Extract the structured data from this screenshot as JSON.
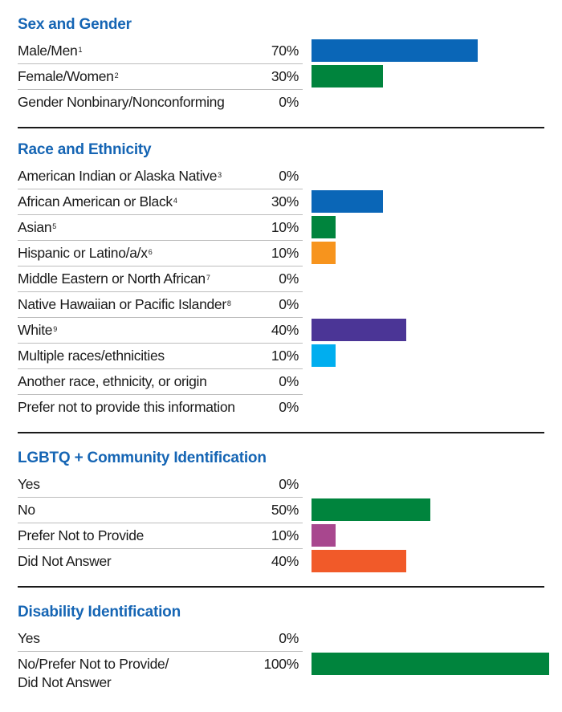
{
  "chart_data": {
    "type": "bar",
    "orientation": "horizontal",
    "value_unit": "%",
    "xlim": [
      0,
      100
    ],
    "grid": false,
    "sections": [
      {
        "title": "Sex and Gender",
        "rows": [
          {
            "label": "Male/Men",
            "sup": "1",
            "value": 70,
            "value_label": "70%",
            "color": "#0a66b7"
          },
          {
            "label": "Female/Women",
            "sup": "2",
            "value": 30,
            "value_label": "30%",
            "color": "#00843d"
          },
          {
            "label": "Gender Nonbinary/Nonconforming",
            "sup": "",
            "value": 0,
            "value_label": "0%",
            "color": ""
          }
        ]
      },
      {
        "title": "Race and Ethnicity",
        "rows": [
          {
            "label": "American Indian or Alaska Native",
            "sup": "3",
            "value": 0,
            "value_label": "0%",
            "color": ""
          },
          {
            "label": "African American or Black",
            "sup": "4",
            "value": 30,
            "value_label": "30%",
            "color": "#0a66b7"
          },
          {
            "label": "Asian",
            "sup": "5",
            "value": 10,
            "value_label": "10%",
            "color": "#00843d"
          },
          {
            "label": "Hispanic or Latino/a/x",
            "sup": "6",
            "value": 10,
            "value_label": "10%",
            "color": "#f7941d"
          },
          {
            "label": "Middle Eastern or North African",
            "sup": "7",
            "value": 0,
            "value_label": "0%",
            "color": ""
          },
          {
            "label": "Native Hawaiian or Pacific Islander",
            "sup": "8",
            "value": 0,
            "value_label": "0%",
            "color": ""
          },
          {
            "label": "White",
            "sup": "9",
            "value": 40,
            "value_label": "40%",
            "color": "#4b3596"
          },
          {
            "label": "Multiple races/ethnicities",
            "sup": "",
            "value": 10,
            "value_label": "10%",
            "color": "#00aeef"
          },
          {
            "label": "Another race, ethnicity, or origin",
            "sup": "",
            "value": 0,
            "value_label": "0%",
            "color": ""
          },
          {
            "label": "Prefer not to provide this information",
            "sup": "",
            "value": 0,
            "value_label": "0%",
            "color": ""
          }
        ]
      },
      {
        "title": "LGBTQ + Community Identification",
        "rows": [
          {
            "label": "Yes",
            "sup": "",
            "value": 0,
            "value_label": "0%",
            "color": ""
          },
          {
            "label": "No",
            "sup": "",
            "value": 50,
            "value_label": "50%",
            "color": "#00843d"
          },
          {
            "label": "Prefer Not to Provide",
            "sup": "",
            "value": 10,
            "value_label": "10%",
            "color": "#a8478e"
          },
          {
            "label": "Did Not Answer",
            "sup": "",
            "value": 40,
            "value_label": "40%",
            "color": "#f15a29"
          }
        ]
      },
      {
        "title": "Disability Identification",
        "rows": [
          {
            "label": "Yes",
            "sup": "",
            "value": 0,
            "value_label": "0%",
            "color": ""
          },
          {
            "label": "No/Prefer Not to Provide/ Did Not Answer",
            "label_lines": [
              "No/Prefer Not to Provide/",
              "Did Not Answer"
            ],
            "sup": "",
            "value": 100,
            "value_label": "100%",
            "color": "#00843d"
          }
        ]
      }
    ]
  }
}
